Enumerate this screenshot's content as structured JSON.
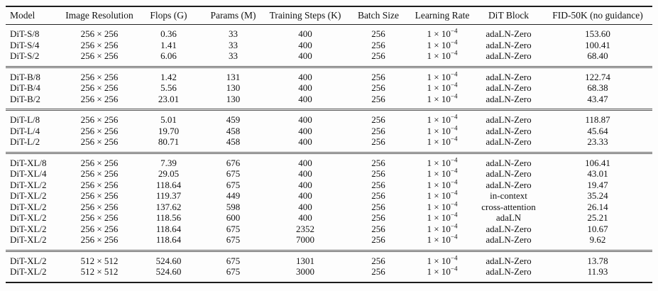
{
  "table": {
    "columns": [
      {
        "label": "Model"
      },
      {
        "label": "Image Resolution"
      },
      {
        "label": "Flops (G)"
      },
      {
        "label": "Params (M)"
      },
      {
        "label": "Training Steps (K)"
      },
      {
        "label": "Batch Size"
      },
      {
        "label": "Learning Rate"
      },
      {
        "label": "DiT Block"
      },
      {
        "label": "FID-50K (no guidance)"
      }
    ],
    "learning_rate": {
      "base": "1 × 10",
      "exponent": "−4"
    },
    "groups": [
      {
        "rows": [
          {
            "model": "DiT-S/8",
            "resolution": "256 × 256",
            "flops": "0.36",
            "params": "33",
            "steps": "400",
            "batch": "256",
            "block": "adaLN-Zero",
            "fid": "153.60"
          },
          {
            "model": "DiT-S/4",
            "resolution": "256 × 256",
            "flops": "1.41",
            "params": "33",
            "steps": "400",
            "batch": "256",
            "block": "adaLN-Zero",
            "fid": "100.41"
          },
          {
            "model": "DiT-S/2",
            "resolution": "256 × 256",
            "flops": "6.06",
            "params": "33",
            "steps": "400",
            "batch": "256",
            "block": "adaLN-Zero",
            "fid": "68.40"
          }
        ]
      },
      {
        "rows": [
          {
            "model": "DiT-B/8",
            "resolution": "256 × 256",
            "flops": "1.42",
            "params": "131",
            "steps": "400",
            "batch": "256",
            "block": "adaLN-Zero",
            "fid": "122.74"
          },
          {
            "model": "DiT-B/4",
            "resolution": "256 × 256",
            "flops": "5.56",
            "params": "130",
            "steps": "400",
            "batch": "256",
            "block": "adaLN-Zero",
            "fid": "68.38"
          },
          {
            "model": "DiT-B/2",
            "resolution": "256 × 256",
            "flops": "23.01",
            "params": "130",
            "steps": "400",
            "batch": "256",
            "block": "adaLN-Zero",
            "fid": "43.47"
          }
        ]
      },
      {
        "rows": [
          {
            "model": "DiT-L/8",
            "resolution": "256 × 256",
            "flops": "5.01",
            "params": "459",
            "steps": "400",
            "batch": "256",
            "block": "adaLN-Zero",
            "fid": "118.87"
          },
          {
            "model": "DiT-L/4",
            "resolution": "256 × 256",
            "flops": "19.70",
            "params": "458",
            "steps": "400",
            "batch": "256",
            "block": "adaLN-Zero",
            "fid": "45.64"
          },
          {
            "model": "DiT-L/2",
            "resolution": "256 × 256",
            "flops": "80.71",
            "params": "458",
            "steps": "400",
            "batch": "256",
            "block": "adaLN-Zero",
            "fid": "23.33"
          }
        ]
      },
      {
        "rows": [
          {
            "model": "DiT-XL/8",
            "resolution": "256 × 256",
            "flops": "7.39",
            "params": "676",
            "steps": "400",
            "batch": "256",
            "block": "adaLN-Zero",
            "fid": "106.41"
          },
          {
            "model": "DiT-XL/4",
            "resolution": "256 × 256",
            "flops": "29.05",
            "params": "675",
            "steps": "400",
            "batch": "256",
            "block": "adaLN-Zero",
            "fid": "43.01"
          },
          {
            "model": "DiT-XL/2",
            "resolution": "256 × 256",
            "flops": "118.64",
            "params": "675",
            "steps": "400",
            "batch": "256",
            "block": "adaLN-Zero",
            "fid": "19.47"
          },
          {
            "model": "DiT-XL/2",
            "resolution": "256 × 256",
            "flops": "119.37",
            "params": "449",
            "steps": "400",
            "batch": "256",
            "block": "in-context",
            "fid": "35.24"
          },
          {
            "model": "DiT-XL/2",
            "resolution": "256 × 256",
            "flops": "137.62",
            "params": "598",
            "steps": "400",
            "batch": "256",
            "block": "cross-attention",
            "fid": "26.14"
          },
          {
            "model": "DiT-XL/2",
            "resolution": "256 × 256",
            "flops": "118.56",
            "params": "600",
            "steps": "400",
            "batch": "256",
            "block": "adaLN",
            "fid": "25.21"
          },
          {
            "model": "DiT-XL/2",
            "resolution": "256 × 256",
            "flops": "118.64",
            "params": "675",
            "steps": "2352",
            "batch": "256",
            "block": "adaLN-Zero",
            "fid": "10.67"
          },
          {
            "model": "DiT-XL/2",
            "resolution": "256 × 256",
            "flops": "118.64",
            "params": "675",
            "steps": "7000",
            "batch": "256",
            "block": "adaLN-Zero",
            "fid": "9.62"
          }
        ]
      },
      {
        "rows": [
          {
            "model": "DiT-XL/2",
            "resolution": "512 × 512",
            "flops": "524.60",
            "params": "675",
            "steps": "1301",
            "batch": "256",
            "block": "adaLN-Zero",
            "fid": "13.78"
          },
          {
            "model": "DiT-XL/2",
            "resolution": "512 × 512",
            "flops": "524.60",
            "params": "675",
            "steps": "3000",
            "batch": "256",
            "block": "adaLN-Zero",
            "fid": "11.93"
          }
        ]
      }
    ]
  }
}
